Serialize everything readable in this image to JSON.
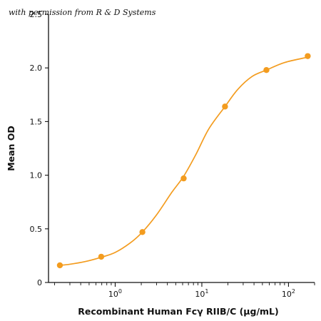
{
  "watermark": {
    "text": "with permission from R & D Systems"
  },
  "chart_data": {
    "type": "scatter",
    "xscale": "log",
    "xlabel": "Recombinant Human Fcγ RIIB/C (µg/mL)",
    "ylabel": "Mean OD",
    "xlim": [
      0.17,
      200
    ],
    "ylim": [
      0,
      2.5
    ],
    "x_ticks": [
      {
        "value": 1,
        "base": "10",
        "exponent": "0"
      },
      {
        "value": 10,
        "base": "10",
        "exponent": "1"
      },
      {
        "value": 100,
        "base": "10",
        "exponent": "2"
      }
    ],
    "y_ticks": [
      {
        "value": 0,
        "label": "0"
      },
      {
        "value": 0.5,
        "label": "0.5"
      },
      {
        "value": 1,
        "label": "1.0"
      },
      {
        "value": 1.5,
        "label": "1.5"
      },
      {
        "value": 2,
        "label": "2.0"
      },
      {
        "value": 2.5,
        "label": "2.5"
      }
    ],
    "series": [
      {
        "color": "#f39c1f",
        "x": [
          0.23,
          0.69,
          2.06,
          6.17,
          18.5,
          55.6,
          166.7
        ],
        "y": [
          0.16,
          0.24,
          0.47,
          0.97,
          1.64,
          1.98,
          2.11
        ],
        "fit": {
          "x": [
            0.23,
            0.3,
            0.45,
            0.69,
            1.0,
            1.5,
            2.06,
            3.0,
            4.5,
            6.17,
            8.5,
            12.0,
            18.5,
            26.0,
            38.0,
            55.6,
            90.0,
            166.7
          ],
          "y": [
            0.16,
            0.17,
            0.195,
            0.235,
            0.28,
            0.37,
            0.47,
            0.63,
            0.84,
            0.99,
            1.19,
            1.43,
            1.64,
            1.8,
            1.92,
            1.98,
            2.05,
            2.1
          ]
        }
      }
    ],
    "grid": false,
    "legend": "none"
  }
}
